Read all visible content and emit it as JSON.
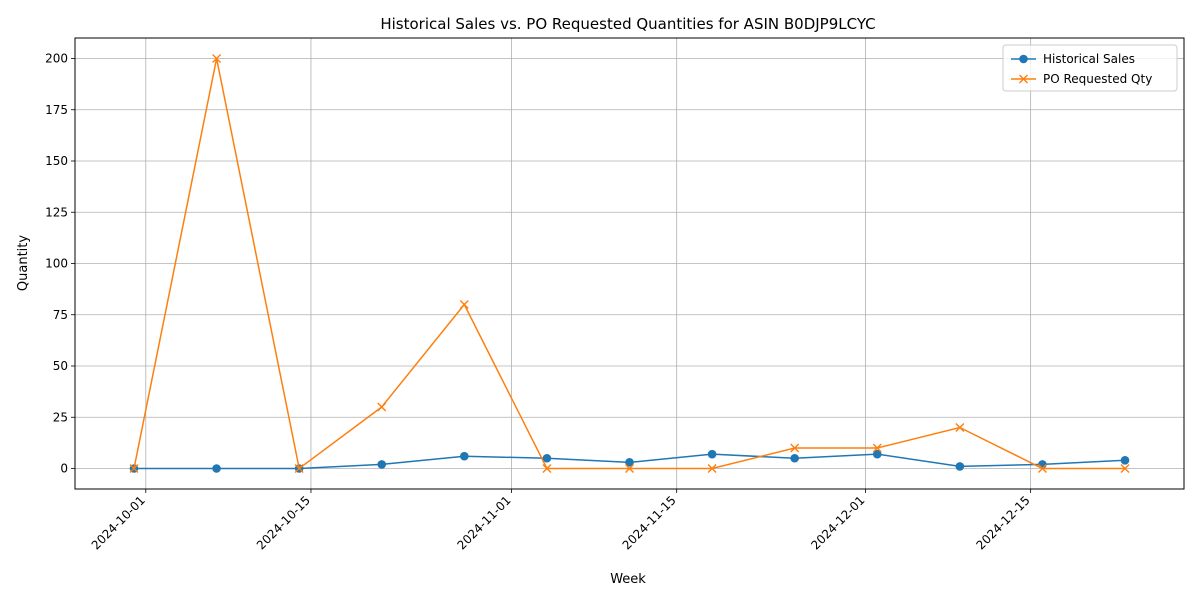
{
  "chart_data": {
    "type": "line",
    "title": "Historical Sales vs. PO Requested Quantities for ASIN B0DJP9LCYC",
    "xlabel": "Week",
    "ylabel": "Quantity",
    "x": [
      "2024-09-30",
      "2024-10-07",
      "2024-10-14",
      "2024-10-21",
      "2024-10-28",
      "2024-11-04",
      "2024-11-11",
      "2024-11-18",
      "2024-11-25",
      "2024-12-02",
      "2024-12-09",
      "2024-12-16",
      "2024-12-23"
    ],
    "xlim": [
      "2024-09-25",
      "2024-12-28"
    ],
    "xticks": [
      "2024-10-01",
      "2024-10-15",
      "2024-11-01",
      "2024-11-15",
      "2024-12-01",
      "2024-12-15"
    ],
    "ylim": [
      -10,
      210
    ],
    "yticks": [
      0,
      25,
      50,
      75,
      100,
      125,
      150,
      175,
      200
    ],
    "grid": true,
    "legend_position": "top-right",
    "series": [
      {
        "name": "Historical Sales",
        "marker": "circle",
        "color": "#1f77b4",
        "values": [
          0,
          0,
          0,
          2,
          6,
          5,
          3,
          7,
          5,
          7,
          1,
          2,
          4
        ]
      },
      {
        "name": "PO Requested Qty",
        "marker": "x",
        "color": "#ff7f0e",
        "values": [
          0,
          200,
          0,
          30,
          80,
          0,
          0,
          0,
          10,
          10,
          20,
          0,
          0
        ]
      }
    ]
  }
}
